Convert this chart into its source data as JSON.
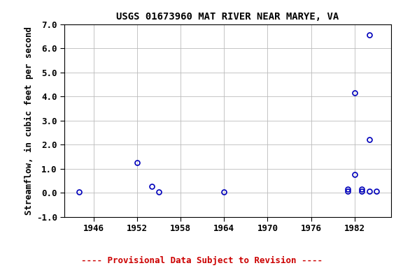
{
  "title": "USGS 01673960 MAT RIVER NEAR MARYE, VA",
  "xlabel": "",
  "ylabel": "Streamflow, in cubic feet per second",
  "xlim": [
    1942,
    1987
  ],
  "ylim": [
    -1.0,
    7.0
  ],
  "xticks": [
    1946,
    1952,
    1958,
    1964,
    1970,
    1976,
    1982
  ],
  "yticks": [
    -1.0,
    0.0,
    1.0,
    2.0,
    3.0,
    4.0,
    5.0,
    6.0,
    7.0
  ],
  "data_x": [
    1944,
    1952,
    1954,
    1955,
    1964,
    1981,
    1981,
    1982,
    1982,
    1983,
    1983,
    1984,
    1984,
    1984,
    1985
  ],
  "data_y": [
    0.05,
    1.25,
    0.28,
    0.05,
    0.05,
    0.15,
    0.08,
    0.77,
    4.15,
    0.15,
    0.07,
    2.2,
    6.55,
    0.08,
    0.08
  ],
  "marker_color": "#0000bb",
  "marker_size": 5,
  "grid_color": "#bbbbbb",
  "background_color": "#ffffff",
  "footnote": "---- Provisional Data Subject to Revision ----",
  "footnote_color": "#cc0000",
  "title_fontsize": 10,
  "label_fontsize": 9,
  "tick_fontsize": 9,
  "footnote_fontsize": 9
}
